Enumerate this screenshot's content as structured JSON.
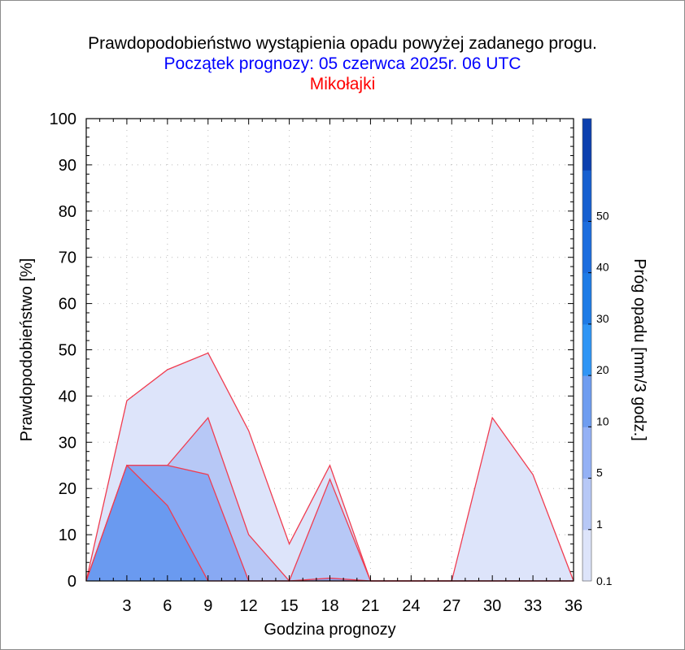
{
  "title": "Prawdopodobieństwo wystąpienia opadu powyżej zadanego progu.",
  "subtitle": "Początek prognozy: 05 czerwca 2025r. 06 UTC",
  "location": "Mikołajki",
  "chart_data": {
    "type": "area",
    "xlabel": "Godzina prognozy",
    "ylabel": "Prawdopodobieństwo [%]",
    "xlim": [
      0,
      36
    ],
    "ylim": [
      0,
      100
    ],
    "x": [
      0,
      3,
      6,
      9,
      12,
      15,
      18,
      21,
      24,
      27,
      30,
      33,
      36
    ],
    "x_ticks": [
      "3",
      "6",
      "9",
      "12",
      "15",
      "18",
      "21",
      "24",
      "27",
      "30",
      "33",
      "36"
    ],
    "y_ticks": [
      "0",
      "10",
      "20",
      "30",
      "40",
      "50",
      "60",
      "70",
      "80",
      "90",
      "100"
    ],
    "grid": true,
    "series": [
      {
        "name": "0.1",
        "color": "#dde4fa",
        "values": [
          0,
          39,
          45.7,
          49.3,
          32.5,
          8,
          25,
          0,
          0,
          0,
          35.3,
          23,
          0
        ]
      },
      {
        "name": "1",
        "color": "#b7c8f6",
        "values": [
          0,
          25,
          25,
          35.3,
          10,
          0,
          22,
          0,
          0,
          0,
          0,
          0,
          0
        ]
      },
      {
        "name": "5",
        "color": "#88a9f3",
        "values": [
          0,
          25,
          25,
          23,
          0,
          0,
          0.6,
          0,
          0,
          0,
          0,
          0,
          0
        ]
      },
      {
        "name": "10",
        "color": "#6a9af0",
        "values": [
          0,
          25,
          16.3,
          0,
          0,
          0,
          0,
          0,
          0,
          0,
          0,
          0,
          0
        ]
      }
    ],
    "colorbar": {
      "label": "Próg opadu [mm/3 godz.]",
      "tick_labels": [
        "0.1",
        "1",
        "5",
        "10",
        "20",
        "30",
        "40",
        "50"
      ],
      "colors": [
        "#dde4fa",
        "#b7c8f6",
        "#94b1f5",
        "#6f9df0",
        "#2f95f5",
        "#1e7be6",
        "#1c6dde",
        "#165fd0",
        "#0b3fae"
      ]
    }
  }
}
